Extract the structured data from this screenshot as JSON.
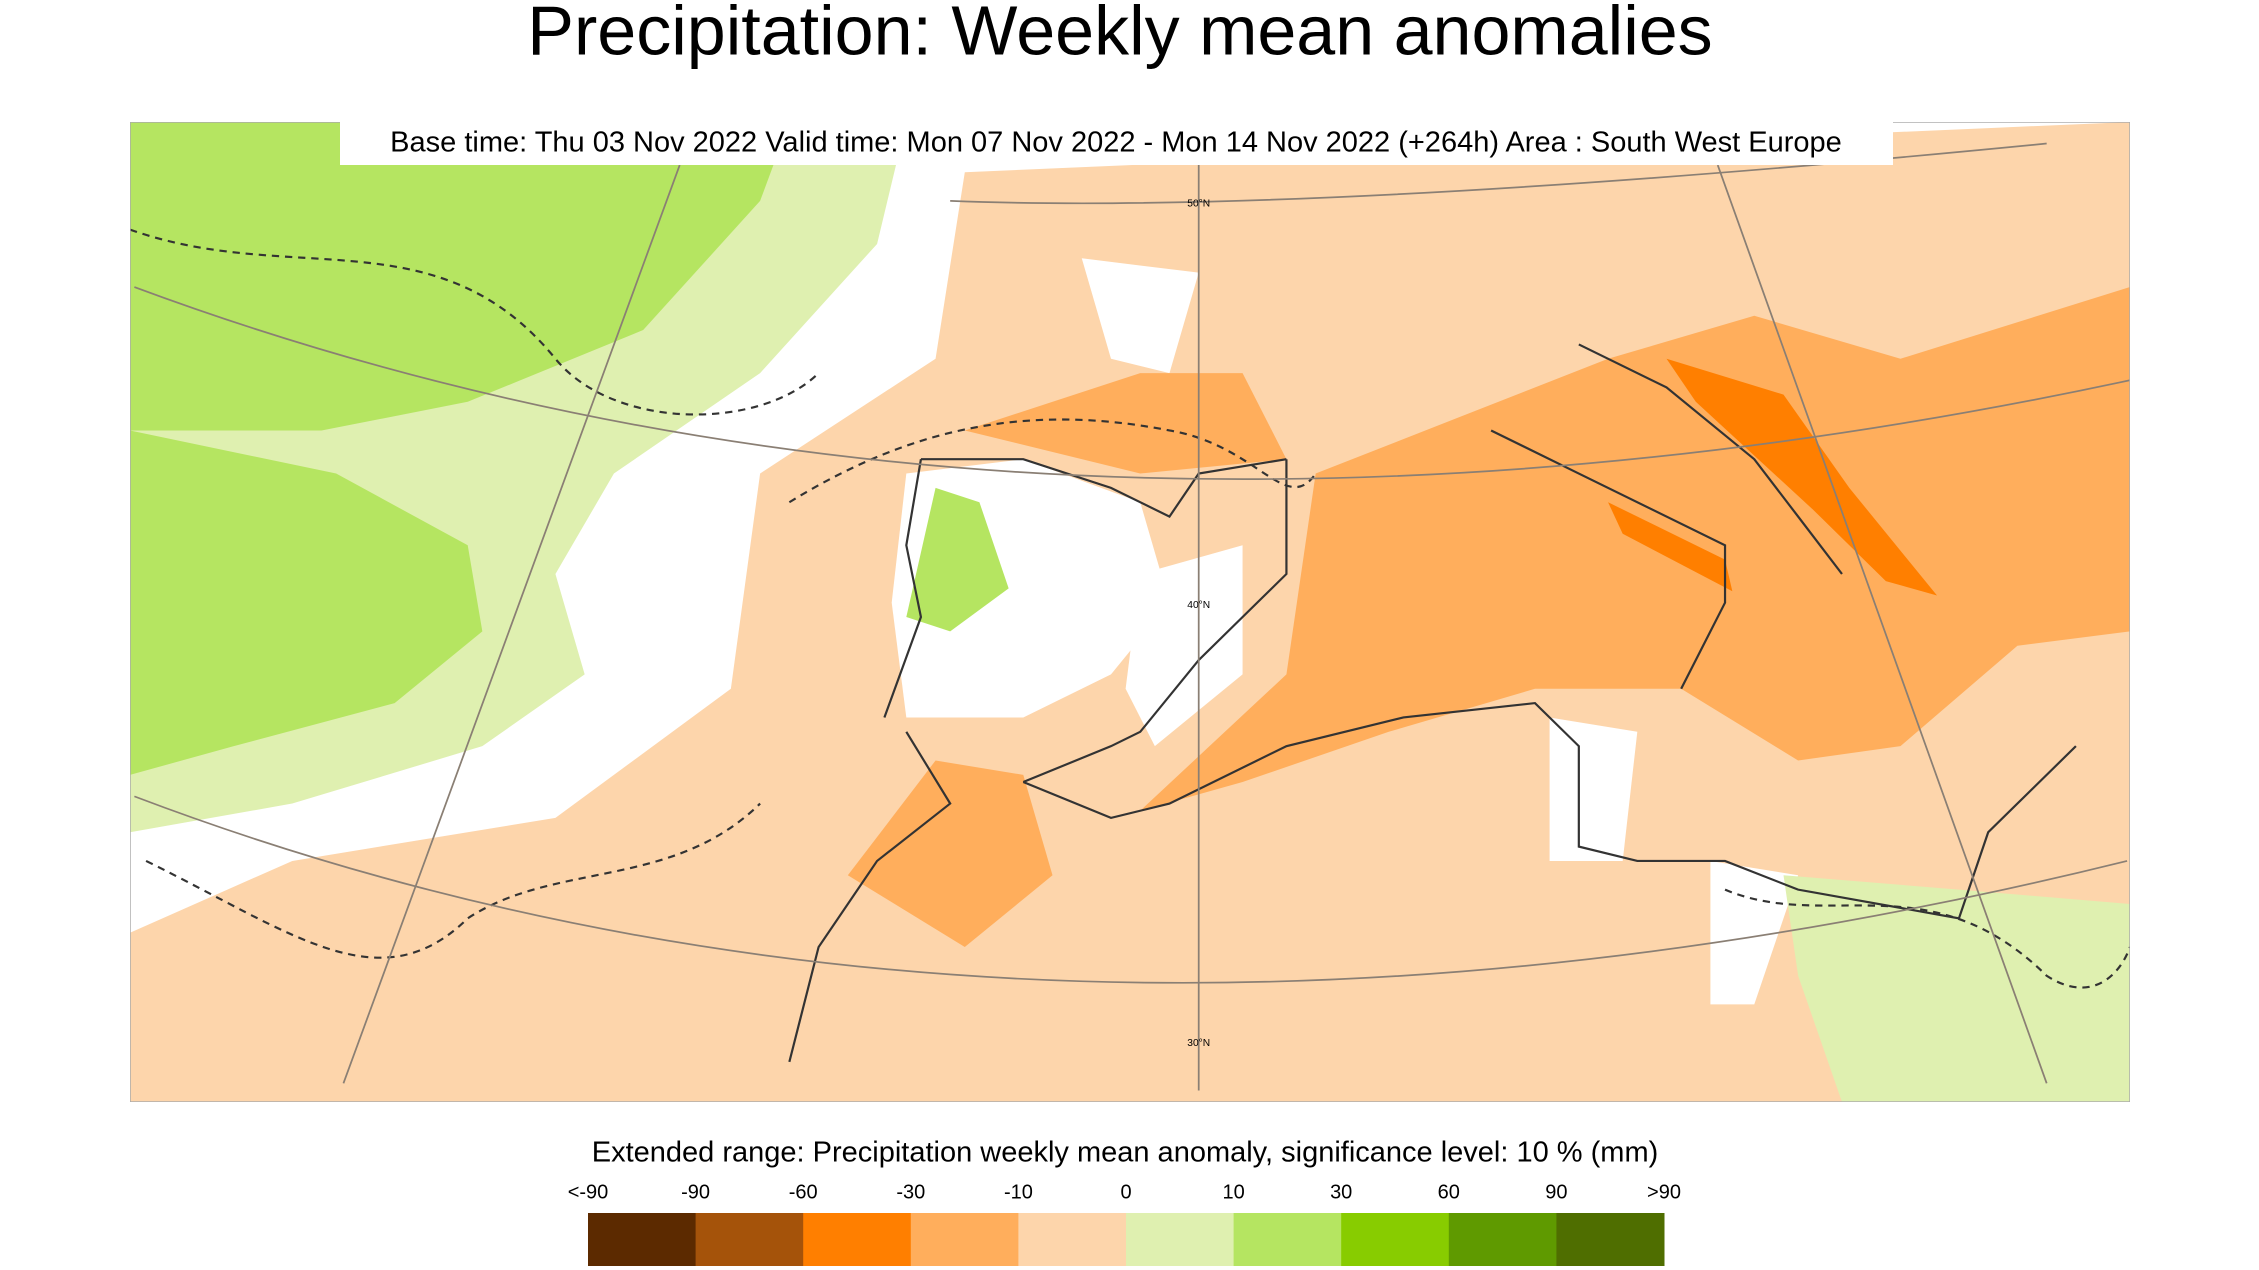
{
  "title": "Precipitation: Weekly mean anomalies",
  "subtitle": "Base time: Thu 03 Nov 2022 Valid time: Mon 07 Nov 2022 - Mon 14 Nov 2022 (+264h) Area : South West Europe",
  "legend": {
    "title": "Extended range: Precipitation weekly mean anomaly, significance level: 10 % (mm)",
    "labels": [
      "<-90",
      "-90",
      "-60",
      "-30",
      "-10",
      "0",
      "10",
      "30",
      "60",
      "90",
      ">90"
    ],
    "colors": [
      "#5c2a00",
      "#a5530a",
      "#ff7f00",
      "#ffae5c",
      "#fdd5ab",
      "#dff0b0",
      "#b5e561",
      "#88cc00",
      "#5f9a00",
      "#4f6e00"
    ]
  },
  "map": {
    "latitude_labels": [
      "50°N",
      "40°N",
      "30°N"
    ]
  }
}
